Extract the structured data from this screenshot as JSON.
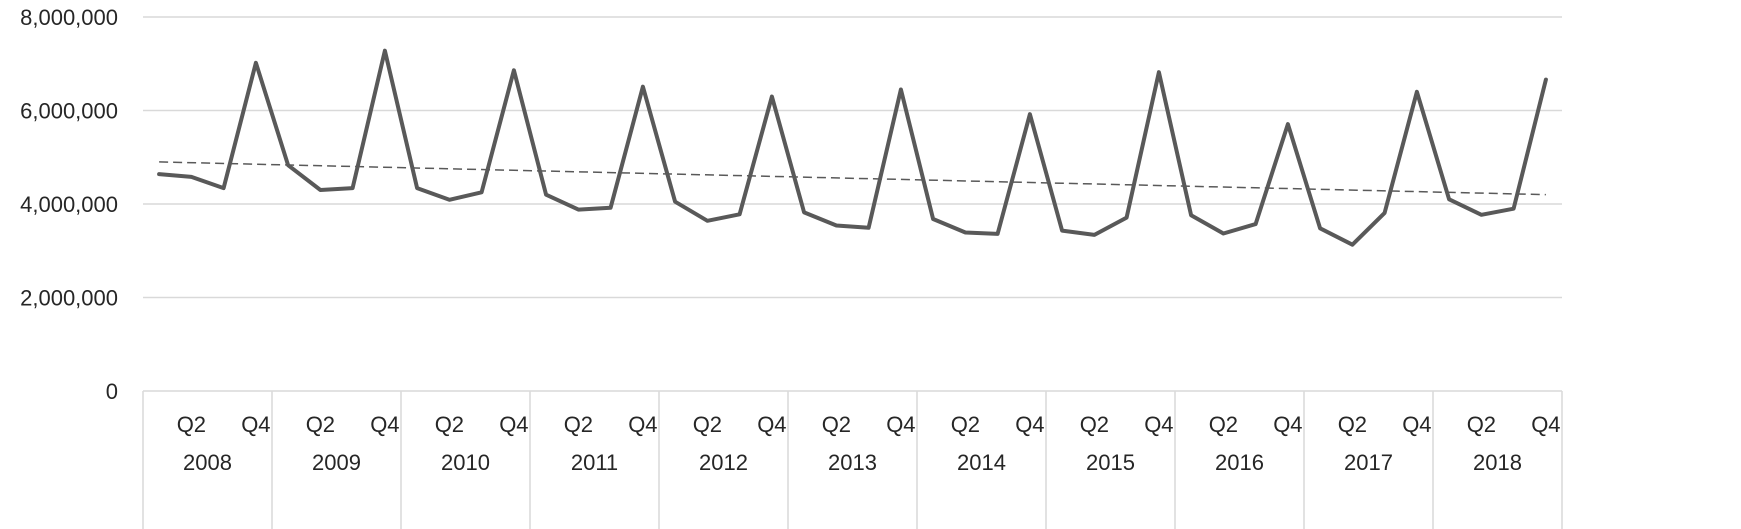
{
  "chart_data": {
    "type": "line",
    "title": "",
    "xlabel": "",
    "ylabel": "",
    "ylim": [
      0,
      8000000
    ],
    "y_ticks": [
      0,
      2000000,
      4000000,
      6000000,
      8000000
    ],
    "y_tick_labels": [
      "0",
      "2,000,000",
      "4,000,000",
      "6,000,000",
      "8,000,000"
    ],
    "grid": true,
    "legend": "none",
    "years": [
      "2008",
      "2009",
      "2010",
      "2011",
      "2012",
      "2013",
      "2014",
      "2015",
      "2016",
      "2017",
      "2018"
    ],
    "quarter_labels_shown": [
      "Q2",
      "Q4"
    ],
    "categories": [
      "2008 Q1",
      "2008 Q2",
      "2008 Q3",
      "2008 Q4",
      "2009 Q1",
      "2009 Q2",
      "2009 Q3",
      "2009 Q4",
      "2010 Q1",
      "2010 Q2",
      "2010 Q3",
      "2010 Q4",
      "2011 Q1",
      "2011 Q2",
      "2011 Q3",
      "2011 Q4",
      "2012 Q1",
      "2012 Q2",
      "2012 Q3",
      "2012 Q4",
      "2013 Q1",
      "2013 Q2",
      "2013 Q3",
      "2013 Q4",
      "2014 Q1",
      "2014 Q2",
      "2014 Q3",
      "2014 Q4",
      "2015 Q1",
      "2015 Q2",
      "2015 Q3",
      "2015 Q4",
      "2016 Q1",
      "2016 Q2",
      "2016 Q3",
      "2016 Q4",
      "2017 Q1",
      "2017 Q2",
      "2017 Q3",
      "2017 Q4",
      "2018 Q1",
      "2018 Q2",
      "2018 Q3",
      "2018 Q4"
    ],
    "series": [
      {
        "values": [
          4640000,
          4580000,
          4340000,
          7020000,
          4830000,
          4300000,
          4340000,
          7280000,
          4340000,
          4090000,
          4250000,
          6860000,
          4200000,
          3880000,
          3920000,
          6510000,
          4050000,
          3640000,
          3780000,
          6300000,
          3820000,
          3540000,
          3490000,
          6450000,
          3680000,
          3390000,
          3360000,
          5920000,
          3430000,
          3340000,
          3710000,
          6820000,
          3760000,
          3370000,
          3570000,
          5710000,
          3480000,
          3130000,
          3810000,
          6400000,
          4100000,
          3770000,
          3900000,
          6660000
        ],
        "color": "#595959"
      }
    ],
    "trendline": {
      "type": "linear",
      "start_value": 4900000,
      "end_value": 4200000,
      "style": "dashed",
      "color": "#595959"
    }
  }
}
